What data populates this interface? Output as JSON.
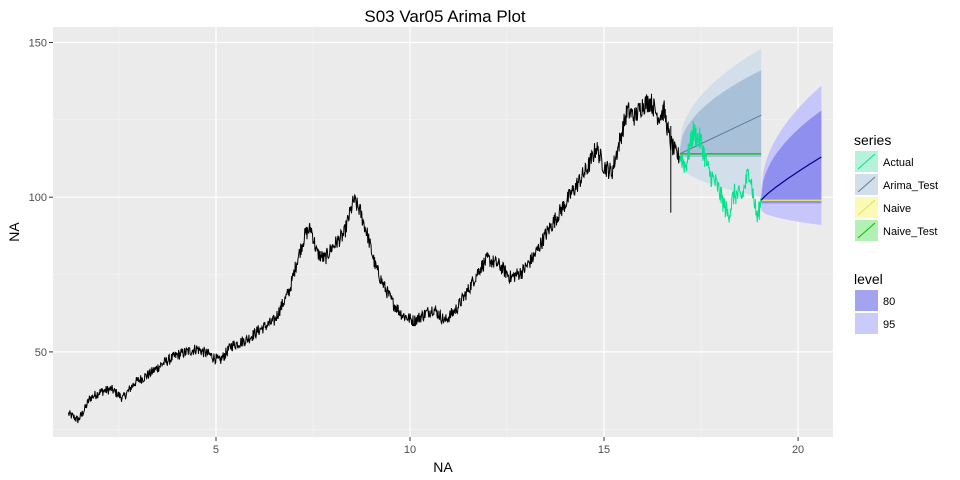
{
  "chart_data": {
    "type": "line",
    "title": "S03 Var05 Arima Plot",
    "xlabel": "NA",
    "ylabel": "NA",
    "xlim": [
      0.8,
      20.9
    ],
    "ylim": [
      22.5,
      155
    ],
    "x_ticks": [
      5,
      10,
      15,
      20
    ],
    "y_ticks": [
      50,
      100,
      150
    ],
    "grid": true,
    "background": "#EBEBEB",
    "legend_position": "right",
    "history": {
      "color": "#000000",
      "x_start": 1.2,
      "x_end": 16.95,
      "points": [
        [
          1.2,
          30
        ],
        [
          1.45,
          28
        ],
        [
          1.6,
          31
        ],
        [
          1.75,
          35
        ],
        [
          2.0,
          37
        ],
        [
          2.3,
          38
        ],
        [
          2.6,
          35
        ],
        [
          2.9,
          40
        ],
        [
          3.3,
          43
        ],
        [
          3.6,
          46
        ],
        [
          4.0,
          49
        ],
        [
          4.5,
          51
        ],
        [
          4.85,
          49
        ],
        [
          5.1,
          47
        ],
        [
          5.4,
          52
        ],
        [
          5.8,
          54
        ],
        [
          6.1,
          57
        ],
        [
          6.5,
          60
        ],
        [
          6.9,
          70
        ],
        [
          7.1,
          80
        ],
        [
          7.3,
          88
        ],
        [
          7.45,
          90
        ],
        [
          7.6,
          82
        ],
        [
          7.8,
          80
        ],
        [
          8.0,
          84
        ],
        [
          8.3,
          88
        ],
        [
          8.55,
          99
        ],
        [
          8.7,
          96
        ],
        [
          8.9,
          88
        ],
        [
          9.1,
          78
        ],
        [
          9.3,
          72
        ],
        [
          9.55,
          66
        ],
        [
          9.8,
          62
        ],
        [
          10.1,
          60
        ],
        [
          10.35,
          62
        ],
        [
          10.6,
          64
        ],
        [
          10.9,
          60
        ],
        [
          11.2,
          64
        ],
        [
          11.5,
          70
        ],
        [
          11.8,
          77
        ],
        [
          12.0,
          80
        ],
        [
          12.3,
          78
        ],
        [
          12.6,
          74
        ],
        [
          12.9,
          76
        ],
        [
          13.2,
          81
        ],
        [
          13.5,
          88
        ],
        [
          13.8,
          94
        ],
        [
          14.1,
          100
        ],
        [
          14.4,
          106
        ],
        [
          14.6,
          110
        ],
        [
          14.8,
          116
        ],
        [
          15.0,
          110
        ],
        [
          15.2,
          108
        ],
        [
          15.4,
          118
        ],
        [
          15.6,
          128
        ],
        [
          15.8,
          126
        ],
        [
          16.0,
          130
        ],
        [
          16.2,
          131
        ],
        [
          16.4,
          126
        ],
        [
          16.55,
          128
        ],
        [
          16.7,
          118
        ],
        [
          16.85,
          114
        ],
        [
          16.95,
          113
        ]
      ],
      "anomaly": {
        "x": 16.72,
        "low": 95,
        "high": 123
      }
    },
    "series": [
      {
        "name": "Actual",
        "color": "#00E38D",
        "points": [
          [
            16.95,
            114
          ],
          [
            17.1,
            110
          ],
          [
            17.3,
            121
          ],
          [
            17.5,
            118
          ],
          [
            17.7,
            108
          ],
          [
            17.9,
            104
          ],
          [
            18.05,
            99
          ],
          [
            18.2,
            94
          ],
          [
            18.35,
            101
          ],
          [
            18.55,
            100
          ],
          [
            18.75,
            109
          ],
          [
            18.85,
            100
          ],
          [
            18.95,
            93
          ],
          [
            19.05,
            99
          ]
        ]
      },
      {
        "name": "Arima_Test",
        "color": "#5A7D9A",
        "x_start": 16.95,
        "x_end": 19.05,
        "y_start": 114,
        "y_end": 126.5,
        "band80": {
          "x_start": 16.95,
          "x_end": 19.05,
          "lo_start": 113,
          "lo_end": 113,
          "hi_start": 115,
          "hi_end": 141,
          "color": "#A8C1D8"
        },
        "band95": {
          "x_start": 16.95,
          "x_end": 19.05,
          "lo_start": 111,
          "lo_end": 100,
          "hi_start": 117,
          "hi_end": 148,
          "color": "#D2DEEA"
        }
      },
      {
        "name": "Naive",
        "color": "#E0E066",
        "x_start": 19.05,
        "x_end": 20.6,
        "y": 99
      },
      {
        "name": "Naive_Test",
        "color": "#00C000",
        "x_start": 16.95,
        "x_end": 19.05,
        "y": 114
      }
    ],
    "forecast": {
      "color": "#00008B",
      "x_start": 19.05,
      "x_end": 20.6,
      "y_start": 99,
      "y_end": 113,
      "band80": {
        "lo_start": 98,
        "lo_end": 98,
        "hi_start": 100,
        "hi_end": 128,
        "color": "#8F8FF0"
      },
      "band95": {
        "lo_start": 96,
        "lo_end": 91,
        "hi_start": 102,
        "hi_end": 136,
        "color": "#C6C6FA"
      }
    },
    "legend": {
      "series_title": "series",
      "series_items": [
        {
          "label": "Actual",
          "color": "#00E38D",
          "fill": "#B5F2DA"
        },
        {
          "label": "Arima_Test",
          "color": "#5A7D9A",
          "fill": "#D2DEEA"
        },
        {
          "label": "Naive",
          "color": "#E0E066",
          "fill": "#FAFAB4"
        },
        {
          "label": "Naive_Test",
          "color": "#00C000",
          "fill": "#B3F0B3"
        }
      ],
      "level_title": "level",
      "level_items": [
        {
          "label": "80",
          "fill": "#A3A3F0"
        },
        {
          "label": "95",
          "fill": "#CBCBFA"
        }
      ]
    }
  }
}
